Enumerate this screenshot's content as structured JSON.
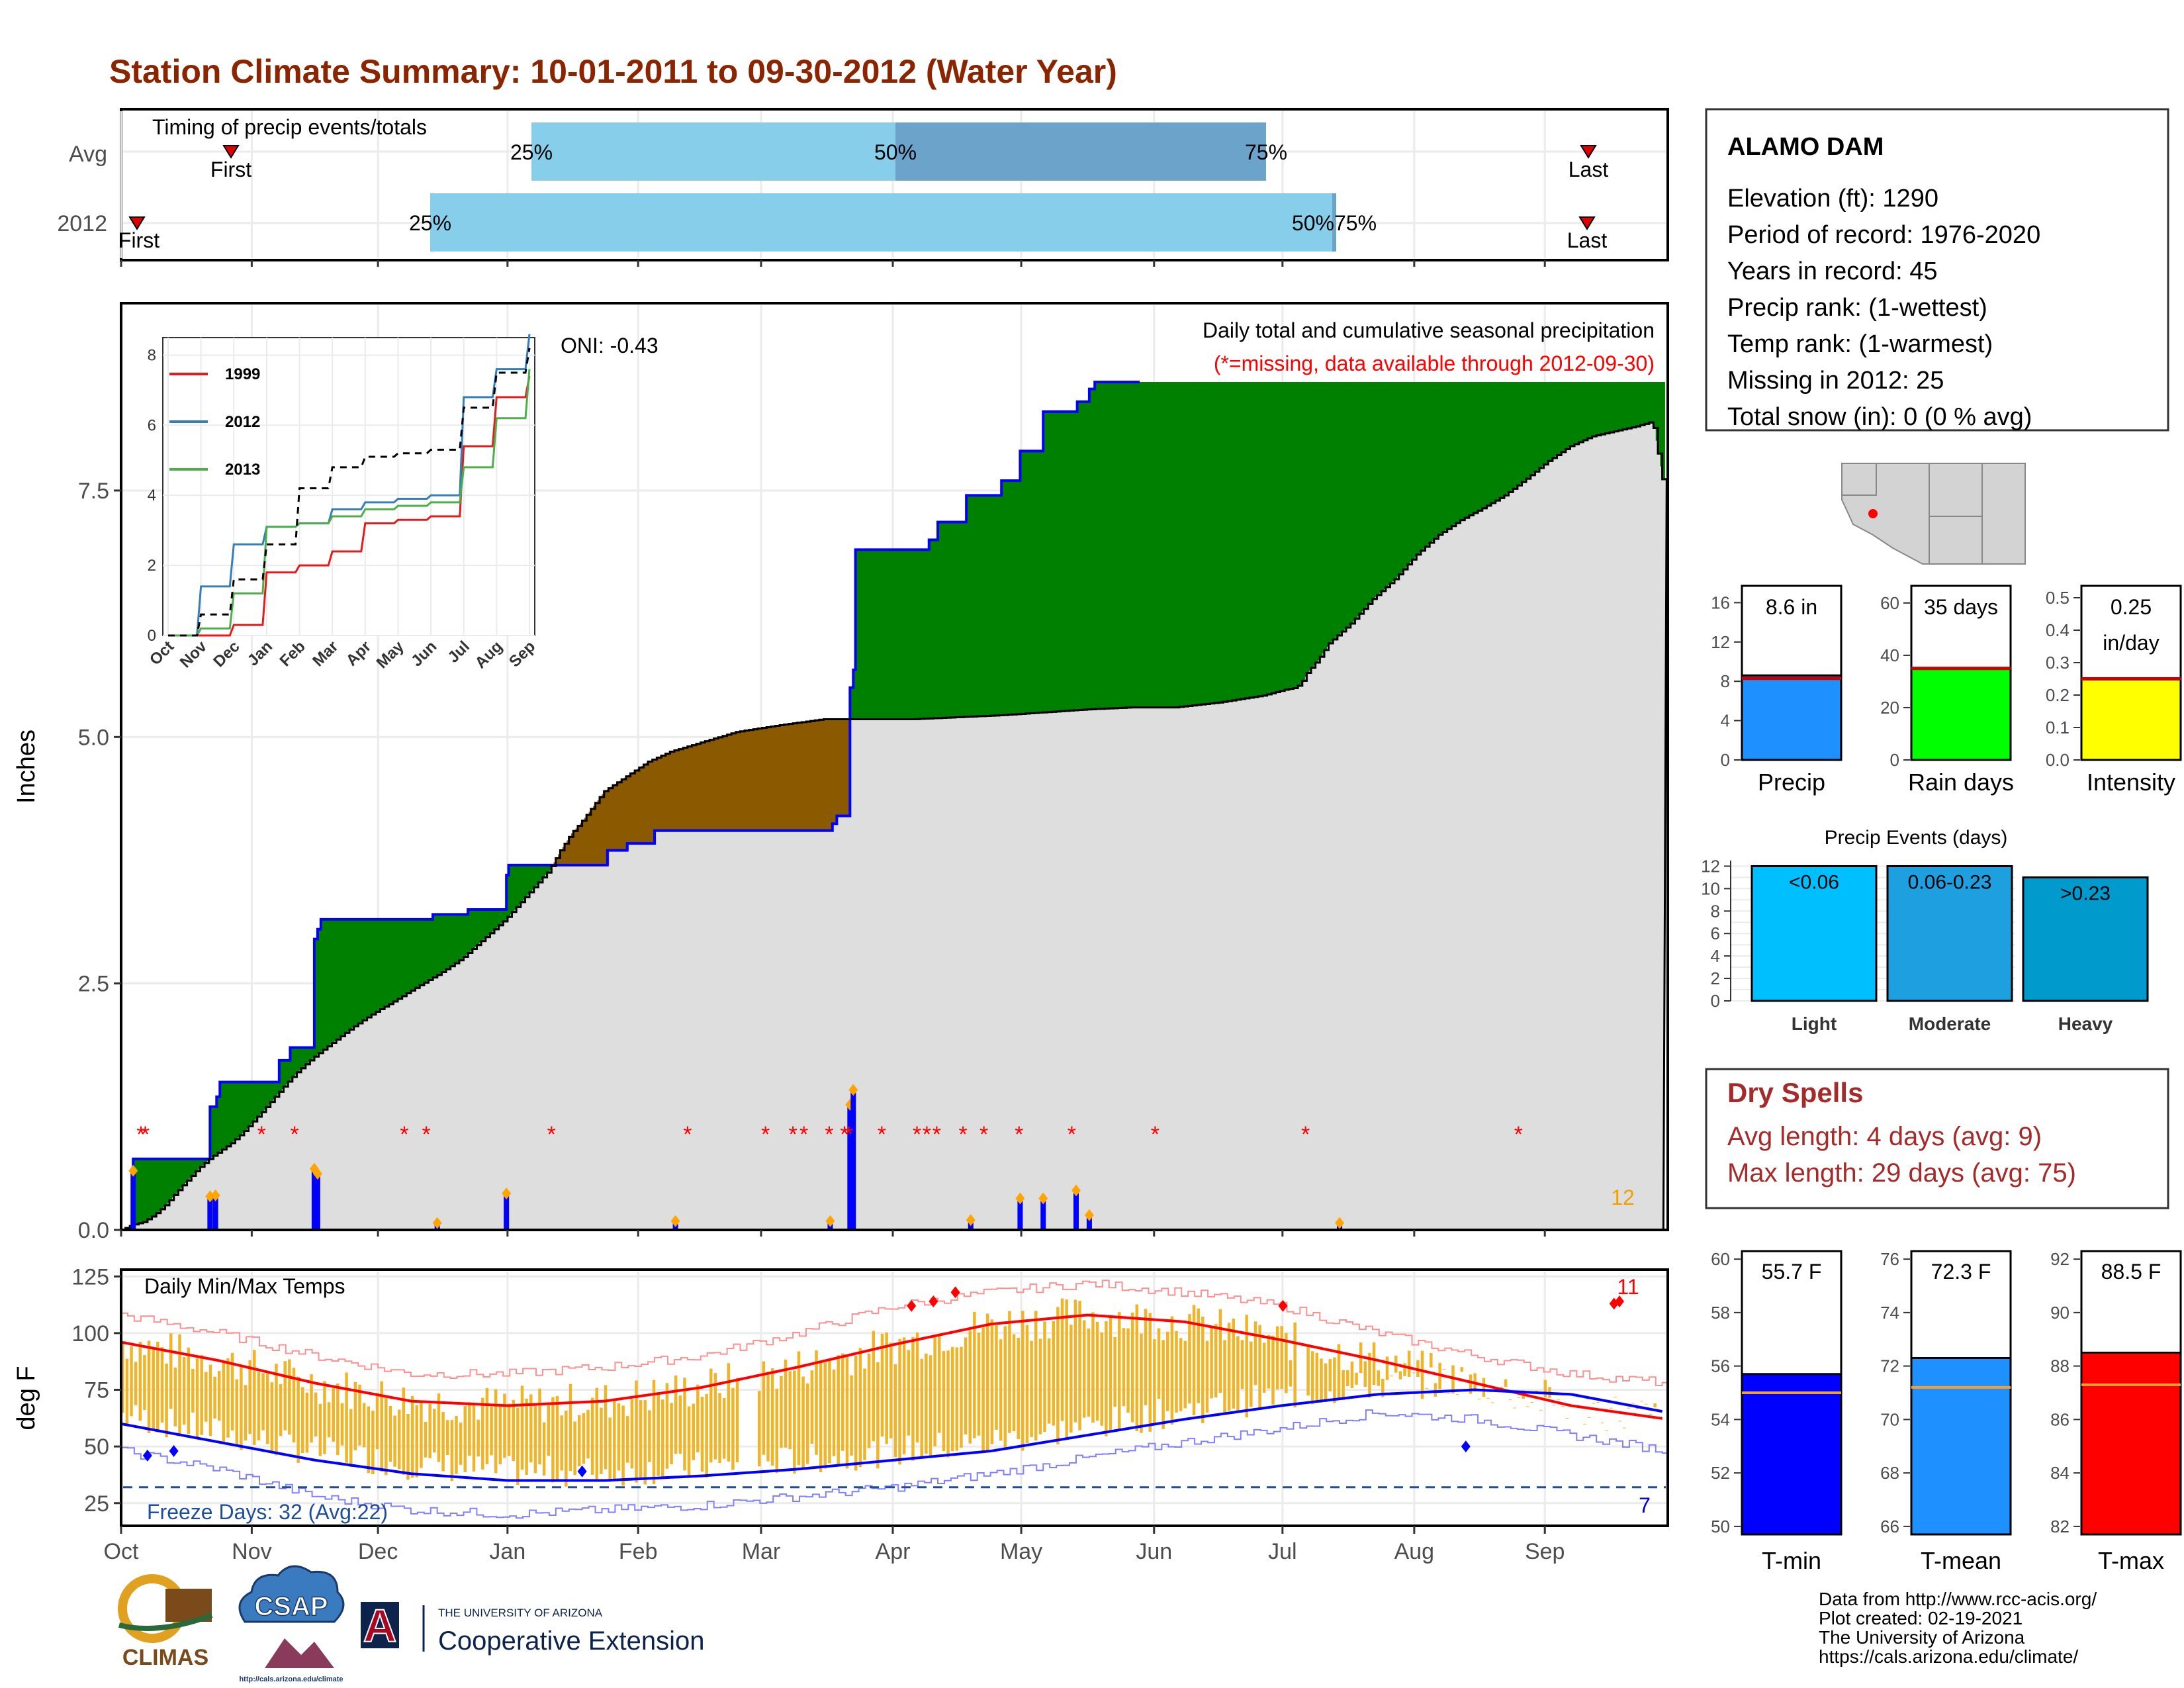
{
  "title": "Station Climate Summary: 10-01-2011 to 09-30-2012 (Water Year)",
  "colors": {
    "title": "#8B2500",
    "green": "#008000",
    "brown": "#8B5A00",
    "grey": "#DEDEDE",
    "blue": "#0000FF",
    "red": "#FF0000",
    "gold": "#F0B429",
    "lightblue": "#87CEEB",
    "midblue": "#6BA3CB",
    "precip": "#1E90FF",
    "raindays": "#00FF00",
    "intensity": "#FFFF00",
    "light": "#00BFFF",
    "moderate": "#1E9FE0",
    "heavy": "#009ACD",
    "tmin": "#0000FF",
    "tmean": "#1E90FF",
    "tmax": "#FF0000",
    "dryspell": "#A52A2A"
  },
  "timing": {
    "label": "Timing of precip events/totals",
    "rows": [
      "Avg",
      "2012"
    ],
    "avg": {
      "first": "First",
      "last": "Last",
      "p25": "25%",
      "p50": "50%",
      "p75": "75%"
    },
    "y2012": {
      "first": "First",
      "last": "Last",
      "p25": "25%",
      "p50p75": "50%75%"
    }
  },
  "station": {
    "name": "ALAMO DAM",
    "lines": [
      "Elevation (ft): 1290",
      "Period of record: 1976-2020",
      "Years in record: 45",
      "Precip rank:  (1-wettest)",
      "Temp rank:  (1-warmest)",
      "Missing in 2012: 25",
      "Total snow (in): 0 (0 % avg)"
    ]
  },
  "main_plot": {
    "ylabel": "Inches",
    "annotation": "Daily total and cumulative seasonal precipitation",
    "missing_note": "(*=missing, data available through 2012-09-30)",
    "oni": "ONI: -0.43",
    "count_label": "12",
    "yticks": [
      "0.0",
      "2.5",
      "5.0",
      "7.5"
    ]
  },
  "chart_data": [
    {
      "type": "area",
      "name": "cumulative_precip",
      "ylabel": "Inches",
      "ylim": [
        0,
        9.4
      ],
      "x_unit": "water-year day (0 = Oct 1)",
      "series": [
        {
          "name": "2012",
          "points": [
            [
              0,
              0
            ],
            [
              9,
              0.02
            ],
            [
              11,
              0.72
            ],
            [
              80,
              0.72
            ],
            [
              81,
              1.25
            ],
            [
              86,
              1.25
            ],
            [
              87,
              1.35
            ],
            [
              90,
              1.5
            ],
            [
              143,
              1.5
            ],
            [
              144,
              1.72
            ],
            [
              153,
              1.72
            ],
            [
              154,
              1.85
            ],
            [
              175,
              1.85
            ],
            [
              176,
              2.95
            ],
            [
              179,
              3.05
            ],
            [
              182,
              3.15
            ],
            [
              282,
              3.15
            ],
            [
              284,
              3.2
            ],
            [
              315,
              3.2
            ],
            [
              316,
              3.25
            ],
            [
              350,
              3.25
            ],
            [
              351,
              3.6
            ],
            [
              353,
              3.7
            ],
            [
              442,
              3.7
            ],
            [
              443,
              3.85
            ],
            [
              460,
              3.85
            ],
            [
              461,
              3.92
            ],
            [
              484,
              3.92
            ],
            [
              486,
              4.05
            ],
            [
              646,
              4.05
            ],
            [
              648,
              4.12
            ],
            [
              650,
              4.12
            ],
            [
              652,
              4.2
            ],
            [
              663,
              4.2
            ],
            [
              664,
              5.5
            ],
            [
              667,
              5.68
            ],
            [
              669,
              6.9
            ],
            [
              735,
              6.9
            ],
            [
              736,
              7.0
            ],
            [
              742,
              7.0
            ],
            [
              744,
              7.18
            ],
            [
              768,
              7.18
            ],
            [
              770,
              7.45
            ],
            [
              800,
              7.45
            ],
            [
              802,
              7.6
            ],
            [
              817,
              7.6
            ],
            [
              819,
              7.9
            ],
            [
              838,
              7.9
            ],
            [
              840,
              8.3
            ],
            [
              869,
              8.3
            ],
            [
              871,
              8.4
            ],
            [
              880,
              8.4
            ],
            [
              882,
              8.53
            ],
            [
              885,
              8.53
            ],
            [
              887,
              8.6
            ],
            [
              928,
              8.6
            ]
          ]
        },
        {
          "name": "Avg",
          "points": [
            [
              0,
              0
            ],
            [
              10,
              0.05
            ],
            [
              20,
              0.08
            ],
            [
              30,
              0.15
            ],
            [
              40,
              0.25
            ],
            [
              50,
              0.38
            ],
            [
              60,
              0.5
            ],
            [
              70,
              0.62
            ],
            [
              80,
              0.72
            ],
            [
              90,
              0.8
            ],
            [
              100,
              0.88
            ],
            [
              110,
              0.98
            ],
            [
              120,
              1.1
            ],
            [
              130,
              1.22
            ],
            [
              140,
              1.35
            ],
            [
              150,
              1.48
            ],
            [
              160,
              1.6
            ],
            [
              175,
              1.75
            ],
            [
              190,
              1.88
            ],
            [
              210,
              2.05
            ],
            [
              230,
              2.2
            ],
            [
              250,
              2.33
            ],
            [
              270,
              2.47
            ],
            [
              290,
              2.6
            ],
            [
              310,
              2.75
            ],
            [
              330,
              2.95
            ],
            [
              350,
              3.15
            ],
            [
              370,
              3.4
            ],
            [
              390,
              3.65
            ],
            [
              400,
              3.85
            ],
            [
              410,
              4.02
            ],
            [
              420,
              4.15
            ],
            [
              430,
              4.3
            ],
            [
              440,
              4.45
            ],
            [
              460,
              4.6
            ],
            [
              480,
              4.75
            ],
            [
              500,
              4.85
            ],
            [
              530,
              4.95
            ],
            [
              560,
              5.05
            ],
            [
              600,
              5.12
            ],
            [
              640,
              5.18
            ],
            [
              680,
              5.18
            ],
            [
              720,
              5.18
            ],
            [
              760,
              5.2
            ],
            [
              800,
              5.22
            ],
            [
              840,
              5.25
            ],
            [
              880,
              5.28
            ],
            [
              920,
              5.3
            ],
            [
              960,
              5.3
            ],
            [
              1000,
              5.35
            ],
            [
              1040,
              5.42
            ],
            [
              1060,
              5.48
            ],
            [
              1070,
              5.5
            ],
            [
              1075,
              5.55
            ],
            [
              1080,
              5.65
            ],
            [
              1090,
              5.78
            ],
            [
              1100,
              5.95
            ],
            [
              1120,
              6.15
            ],
            [
              1140,
              6.4
            ],
            [
              1160,
              6.6
            ],
            [
              1180,
              6.85
            ],
            [
              1200,
              7.05
            ],
            [
              1220,
              7.2
            ],
            [
              1240,
              7.32
            ],
            [
              1260,
              7.45
            ],
            [
              1280,
              7.62
            ],
            [
              1300,
              7.8
            ],
            [
              1320,
              7.95
            ],
            [
              1340,
              8.05
            ],
            [
              1360,
              8.1
            ],
            [
              1380,
              8.15
            ],
            [
              1395,
              8.2
            ],
            [
              1405,
              7.55
            ]
          ]
        }
      ]
    },
    {
      "type": "bar",
      "name": "daily_precip_events",
      "unit": "inches",
      "values": [
        [
          11,
          0.58
        ],
        [
          81,
          0.32
        ],
        [
          86,
          0.33
        ],
        [
          176,
          0.6
        ],
        [
          179,
          0.55
        ],
        [
          351,
          0.35
        ],
        [
          664,
          1.25
        ],
        [
          667,
          1.4
        ],
        [
          840,
          0.3
        ],
        [
          882,
          0.13
        ],
        [
          646,
          0.07
        ],
        [
          288,
          0.05
        ],
        [
          505,
          0.07
        ],
        [
          819,
          0.3
        ],
        [
          870,
          0.38
        ],
        [
          774,
          0.08
        ],
        [
          1110,
          0.05
        ]
      ]
    },
    {
      "type": "line",
      "name": "inset_cumulative",
      "x_ticks": [
        "Oct",
        "Nov",
        "Dec",
        "Jan",
        "Feb",
        "Mar",
        "Apr",
        "May",
        "Jun",
        "Jul",
        "Aug",
        "Sep"
      ],
      "ylim": [
        0,
        8.5
      ],
      "series": [
        {
          "name": "1999",
          "values": [
            0,
            0,
            0.3,
            1.8,
            2.0,
            2.4,
            3.2,
            3.3,
            3.4,
            5.4,
            6.8,
            7.4
          ]
        },
        {
          "name": "2012",
          "values": [
            0,
            1.4,
            2.6,
            3.1,
            3.2,
            3.6,
            3.8,
            3.9,
            4.0,
            6.8,
            7.6,
            8.6
          ]
        },
        {
          "name": "2013",
          "values": [
            0,
            0.2,
            1.2,
            3.1,
            3.2,
            3.4,
            3.6,
            3.7,
            3.8,
            4.8,
            6.2,
            7.6
          ]
        },
        {
          "name": "Avg",
          "values": [
            0,
            0.6,
            1.6,
            2.6,
            4.2,
            4.8,
            5.1,
            5.2,
            5.3,
            6.5,
            7.5,
            8.2
          ]
        }
      ]
    },
    {
      "type": "line",
      "name": "daily_temps",
      "ylabel": "deg F",
      "ylim": [
        15,
        128
      ],
      "yticks": [
        25,
        50,
        75,
        100,
        125
      ],
      "months": [
        "Oct",
        "Nov",
        "Dec",
        "Jan",
        "Feb",
        "Mar",
        "Apr",
        "May",
        "Jun",
        "Jul",
        "Aug",
        "Sep"
      ],
      "avg_max": [
        96,
        88,
        78,
        70,
        68,
        70,
        76,
        85,
        95,
        104,
        108,
        105,
        97,
        88,
        78,
        68,
        62
      ],
      "avg_min": [
        60,
        52,
        44,
        38,
        35,
        35,
        37,
        40,
        44,
        48,
        55,
        62,
        68,
        73,
        75,
        73,
        65
      ],
      "record_max": [
        108,
        100,
        90,
        82,
        82,
        85,
        90,
        100,
        112,
        118,
        122,
        118,
        112,
        100,
        90,
        82,
        78
      ],
      "record_min": [
        48,
        40,
        28,
        22,
        20,
        22,
        24,
        28,
        32,
        38,
        45,
        52,
        58,
        65,
        62,
        55,
        48
      ],
      "freeze_threshold": 32
    },
    {
      "type": "bar",
      "name": "summary_bars",
      "groups": [
        {
          "title": "Precip",
          "value_label": "8.6 in",
          "value": 8.6,
          "avg": 8.3,
          "ylim": [
            0,
            16.5
          ],
          "ticks": [
            "0",
            "4",
            "8",
            "12",
            "16"
          ]
        },
        {
          "title": "Rain days",
          "value_label": "35 days",
          "value": 35,
          "avg": 35,
          "ylim": [
            0,
            62
          ],
          "ticks": [
            "0",
            "20",
            "40",
            "60"
          ]
        },
        {
          "title": "Intensity",
          "value_label": "0.25",
          "value_label2": "in/day",
          "value": 0.25,
          "avg": 0.25,
          "ylim": [
            0,
            0.5
          ],
          "ticks": [
            "0.0",
            "0.1",
            "0.2",
            "0.3",
            "0.4",
            "0.5"
          ]
        }
      ]
    },
    {
      "type": "bar",
      "name": "precip_events",
      "title": "Precip Events (days)",
      "categories": [
        "Light",
        "Moderate",
        "Heavy"
      ],
      "labels": [
        "<0.06",
        "0.06-0.23",
        ">0.23"
      ],
      "values": [
        12,
        12,
        11
      ],
      "ylim": [
        0,
        12.5
      ],
      "ticks": [
        "0",
        "2",
        "4",
        "6",
        "8",
        "10",
        "12"
      ]
    },
    {
      "type": "bar",
      "name": "temp_summary",
      "groups": [
        {
          "title": "T-min",
          "value_label": "55.7 F",
          "value": 55.7,
          "avg": 55.0,
          "ylim": [
            49.7,
            60.3
          ],
          "ticks": [
            "50",
            "52",
            "54",
            "56",
            "58",
            "60"
          ]
        },
        {
          "title": "T-mean",
          "value_label": "72.3 F",
          "value": 72.3,
          "avg": 71.2,
          "ylim": [
            65.7,
            76.3
          ],
          "ticks": [
            "66",
            "68",
            "70",
            "72",
            "74",
            "76"
          ]
        },
        {
          "title": "T-max",
          "value_label": "88.5 F",
          "value": 88.5,
          "avg": 87.3,
          "ylim": [
            81.7,
            92.3
          ],
          "ticks": [
            "82",
            "84",
            "86",
            "88",
            "90",
            "92"
          ]
        }
      ]
    }
  ],
  "inset_legend": [
    "1999",
    "2012",
    "2013"
  ],
  "temps": {
    "label": "Daily Min/Max Temps",
    "count_high": "11",
    "count_low": "7",
    "freeze_label": "Freeze Days: 32 (Avg:22)"
  },
  "months": [
    "Oct",
    "Nov",
    "Dec",
    "Jan",
    "Feb",
    "Mar",
    "Apr",
    "May",
    "Jun",
    "Jul",
    "Aug",
    "Sep"
  ],
  "dry_spells": {
    "title": "Dry Spells",
    "avg": "Avg length: 4 days (avg: 9)",
    "max": "Max length: 29 days (avg: 75)"
  },
  "footer": {
    "lines": [
      "Data from http://www.rcc-acis.org/",
      "Plot created: 02-19-2021",
      "The University of Arizona",
      "https://cals.arizona.edu/climate/"
    ]
  },
  "logos": {
    "climas": "CLIMAS",
    "csap": "CSAP",
    "csap_url": "http://cals.arizona.edu/climate",
    "ua_small": "THE UNIVERSITY OF ARIZONA",
    "coop": "Cooperative Extension",
    "ua_letter": "A"
  }
}
